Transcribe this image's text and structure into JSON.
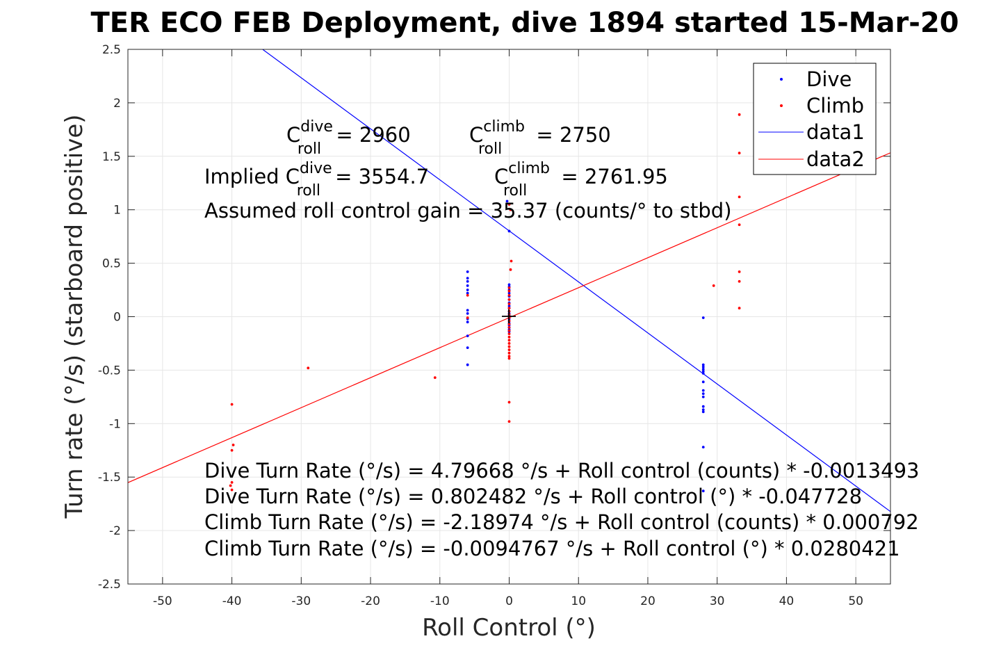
{
  "chart_data": {
    "type": "scatter",
    "title": "TER ECO FEB Deployment, dive 1894 started 15-Mar-20",
    "xlabel": "Roll Control (°)",
    "ylabel": "Turn rate (°/s) (starboard positive)",
    "xlim": [
      -55,
      55
    ],
    "ylim": [
      -2.5,
      2.5
    ],
    "xticks": [
      -50,
      -40,
      -30,
      -20,
      -10,
      0,
      10,
      20,
      30,
      40,
      50
    ],
    "yticks": [
      -2.5,
      -2,
      -1.5,
      -1,
      -0.5,
      0,
      0.5,
      1,
      1.5,
      2,
      2.5
    ],
    "grid": true,
    "legend_position": "top-right",
    "series": [
      {
        "name": "Dive",
        "color": "#0000ff",
        "points": [
          [
            -6,
            0.42
          ],
          [
            -6,
            0.36
          ],
          [
            -6,
            0.33
          ],
          [
            -6,
            0.29
          ],
          [
            -6,
            0.25
          ],
          [
            -6,
            0.22
          ],
          [
            -6,
            0.06
          ],
          [
            -6,
            0.03
          ],
          [
            -6,
            -0.02
          ],
          [
            -6,
            -0.05
          ],
          [
            -6,
            -0.18
          ],
          [
            -6,
            -0.29
          ],
          [
            -6,
            -0.45
          ],
          [
            -0.3,
            1.08
          ],
          [
            0,
            0.8
          ],
          [
            0,
            0.3
          ],
          [
            0,
            0.28
          ],
          [
            0,
            0.25
          ],
          [
            0,
            0.22
          ],
          [
            0,
            0.19
          ],
          [
            0,
            0.16
          ],
          [
            0,
            0.13
          ],
          [
            0,
            0.1
          ],
          [
            0,
            0.08
          ],
          [
            0,
            0.05
          ],
          [
            0,
            0.03
          ],
          [
            0,
            0.01
          ],
          [
            0,
            -0.02
          ],
          [
            0,
            -0.04
          ],
          [
            0,
            -0.06
          ],
          [
            0,
            -0.08
          ],
          [
            0,
            -0.1
          ],
          [
            0,
            -0.12
          ],
          [
            0,
            -0.14
          ],
          [
            28,
            -0.01
          ],
          [
            28,
            -0.45
          ],
          [
            28,
            -0.47
          ],
          [
            28,
            -0.49
          ],
          [
            28,
            -0.51
          ],
          [
            28,
            -0.53
          ],
          [
            28,
            -0.61
          ],
          [
            28,
            -0.69
          ],
          [
            28,
            -0.72
          ],
          [
            28,
            -0.75
          ],
          [
            28,
            -0.84
          ],
          [
            28,
            -0.87
          ],
          [
            28,
            -0.89
          ],
          [
            28,
            -1.22
          ],
          [
            28,
            -1.63
          ]
        ]
      },
      {
        "name": "Climb",
        "color": "#ff0000",
        "points": [
          [
            -40,
            -0.82
          ],
          [
            -39.8,
            -1.2
          ],
          [
            -40,
            -1.25
          ],
          [
            -40,
            -1.55
          ],
          [
            -40.2,
            -1.58
          ],
          [
            -40,
            -1.62
          ],
          [
            -29,
            -0.48
          ],
          [
            -10.7,
            -0.57
          ],
          [
            -6,
            0.2
          ],
          [
            -6,
            -0.01
          ],
          [
            0,
            1.05
          ],
          [
            0.2,
            1.0
          ],
          [
            0.3,
            0.52
          ],
          [
            0.2,
            0.44
          ],
          [
            0,
            0.27
          ],
          [
            0,
            0.24
          ],
          [
            0,
            0.2
          ],
          [
            0,
            0.16
          ],
          [
            0,
            0.12
          ],
          [
            0,
            0.08
          ],
          [
            0,
            0.05
          ],
          [
            0,
            0.02
          ],
          [
            0,
            -0.01
          ],
          [
            0,
            -0.04
          ],
          [
            0,
            -0.07
          ],
          [
            0,
            -0.1
          ],
          [
            0,
            -0.13
          ],
          [
            0,
            -0.16
          ],
          [
            0,
            -0.19
          ],
          [
            0,
            -0.22
          ],
          [
            0,
            -0.25
          ],
          [
            0,
            -0.28
          ],
          [
            0,
            -0.31
          ],
          [
            0,
            -0.34
          ],
          [
            0,
            -0.37
          ],
          [
            0,
            -0.39
          ],
          [
            0,
            -0.8
          ],
          [
            0,
            -0.98
          ],
          [
            29.5,
            0.29
          ],
          [
            33.2,
            1.89
          ],
          [
            33.2,
            1.53
          ],
          [
            33.2,
            1.12
          ],
          [
            33.2,
            0.86
          ],
          [
            33.2,
            0.42
          ],
          [
            33.2,
            0.33
          ],
          [
            33.2,
            0.08
          ]
        ]
      }
    ],
    "lines": [
      {
        "name": "data1",
        "color": "#0000ff",
        "intercept": 0.802482,
        "slope": -0.047728
      },
      {
        "name": "data2",
        "color": "#ff0000",
        "intercept": -0.0094767,
        "slope": 0.0280421
      }
    ],
    "annotations": {
      "c_roll_dive": {
        "base": "C",
        "sup": "dive",
        "sub": "roll",
        "rest": " = 2960"
      },
      "c_roll_climb": {
        "base": "C",
        "sup": "climb",
        "sub": "roll",
        "rest": " = 2750"
      },
      "implied_dive": {
        "prefix": "Implied C",
        "sup": "dive",
        "sub": "roll",
        "rest": " = 3554.7"
      },
      "implied_climb": {
        "base": "C",
        "sup": "climb",
        "sub": "roll",
        "rest": " = 2761.95"
      },
      "gain": "Assumed roll control gain = 35.37 (counts/° to stbd)",
      "eq1": "Dive Turn Rate (°/s) = 4.79668 °/s + Roll control (counts) * -0.0013493",
      "eq2": "Dive Turn Rate (°/s) = 0.802482 °/s + Roll control (°) * -0.047728",
      "eq3": "Climb Turn Rate (°/s) = -2.18974 °/s + Roll control (counts) * 0.000792",
      "eq4": "Climb Turn Rate (°/s) = -0.0094767 °/s + Roll control (°) * 0.0280421"
    }
  }
}
